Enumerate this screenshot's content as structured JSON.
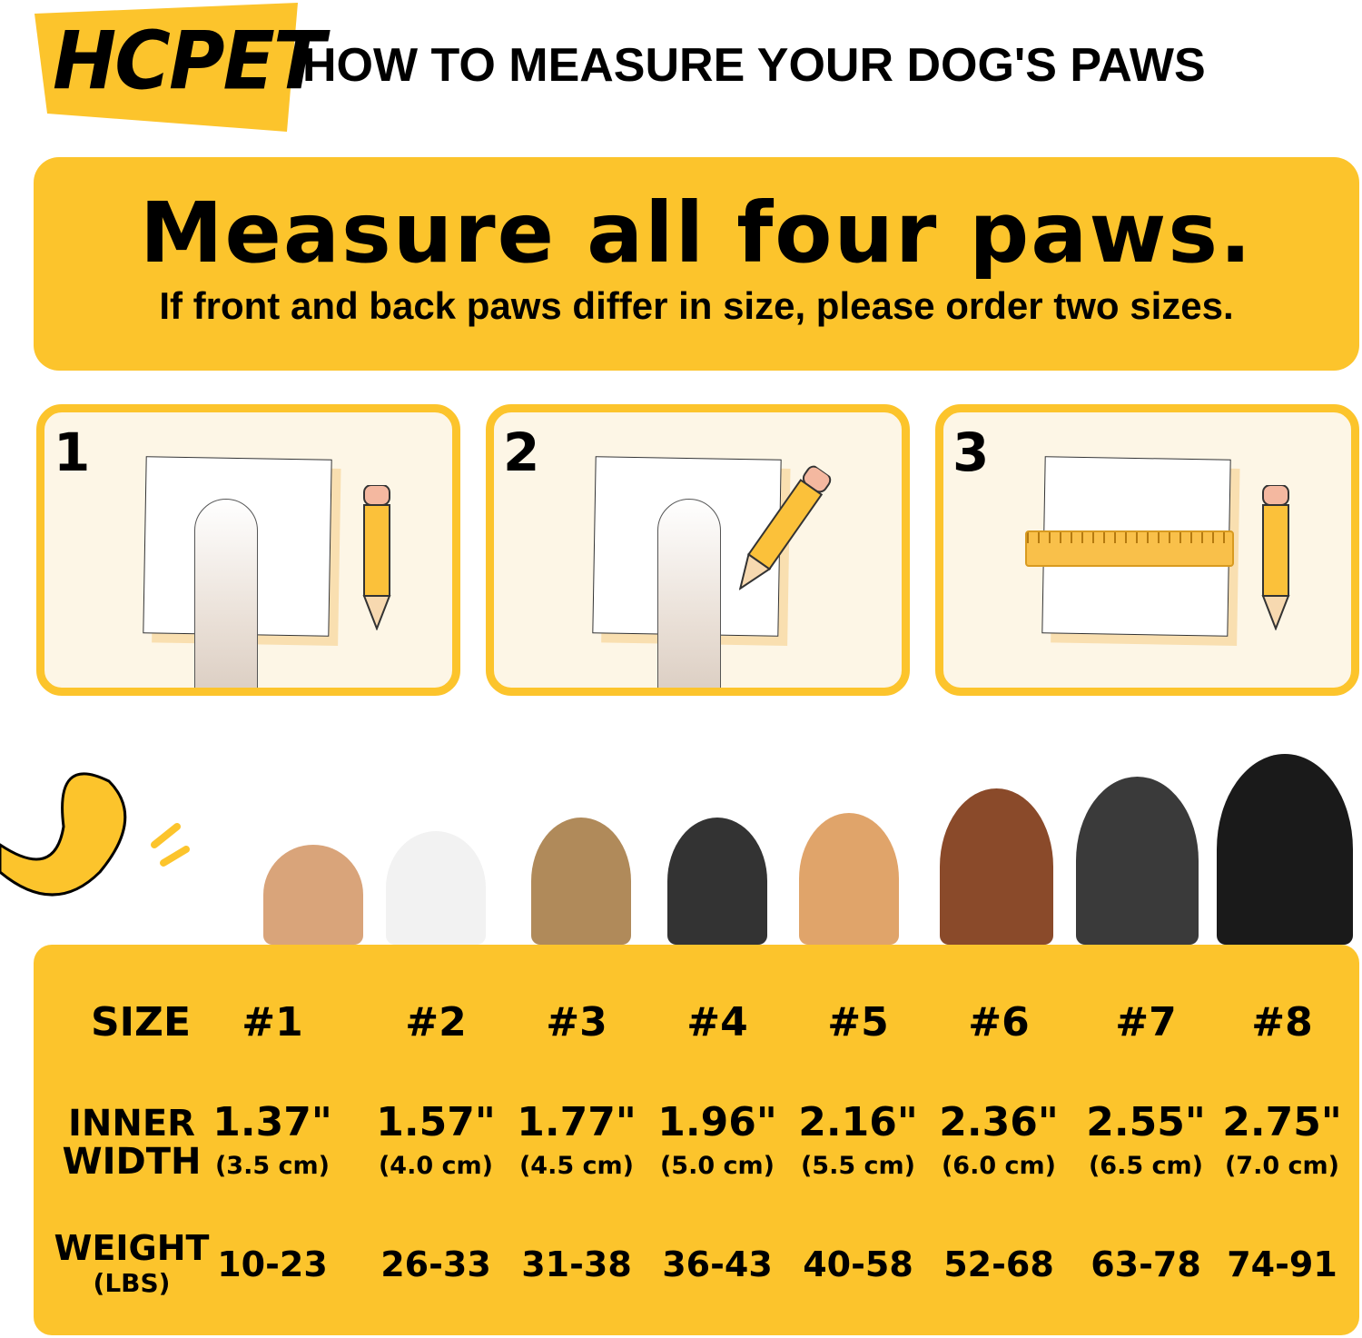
{
  "brand": {
    "logo_text": "HCPET",
    "accent": "#fcc42c"
  },
  "header": {
    "title": "HOW TO MEASURE YOUR DOG'S PAWS"
  },
  "banner": {
    "headline": "Measure all four paws.",
    "subtitle": "If front and back paws differ in size, please order two sizes."
  },
  "steps": [
    {
      "number": "1"
    },
    {
      "number": "2"
    },
    {
      "number": "3"
    }
  ],
  "table": {
    "row_labels": {
      "size": "SIZE",
      "inner": "INNER",
      "width": "WIDTH",
      "weight": "WEIGHT",
      "lbs": "(LBS)"
    },
    "sizes": [
      {
        "size": "#1",
        "inch": "1.37\"",
        "cm": "(3.5 cm)",
        "weight": "10-23"
      },
      {
        "size": "#2",
        "inch": "1.57\"",
        "cm": "(4.0 cm)",
        "weight": "26-33"
      },
      {
        "size": "#3",
        "inch": "1.77\"",
        "cm": "(4.5 cm)",
        "weight": "31-38"
      },
      {
        "size": "#4",
        "inch": "1.96\"",
        "cm": "(5.0 cm)",
        "weight": "36-43"
      },
      {
        "size": "#5",
        "inch": "2.16\"",
        "cm": "(5.5 cm)",
        "weight": "40-58"
      },
      {
        "size": "#6",
        "inch": "2.36\"",
        "cm": "(6.0 cm)",
        "weight": "52-68"
      },
      {
        "size": "#7",
        "inch": "2.55\"",
        "cm": "(6.5 cm)",
        "weight": "63-78"
      },
      {
        "size": "#8",
        "inch": "2.75\"",
        "cm": "(7.0 cm)",
        "weight": "74-91"
      }
    ]
  }
}
